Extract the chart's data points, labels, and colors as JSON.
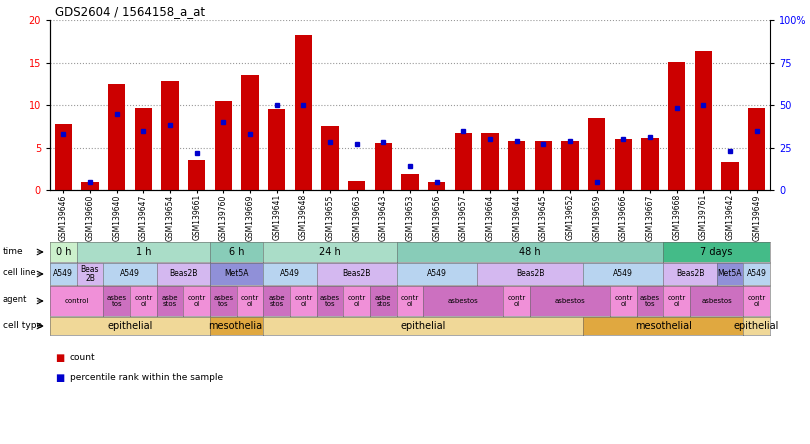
{
  "title": "GDS2604 / 1564158_a_at",
  "samples": [
    "GSM139646",
    "GSM139660",
    "GSM139640",
    "GSM139647",
    "GSM139654",
    "GSM139661",
    "GSM139760",
    "GSM139669",
    "GSM139641",
    "GSM139648",
    "GSM139655",
    "GSM139663",
    "GSM139643",
    "GSM139653",
    "GSM139656",
    "GSM139657",
    "GSM139664",
    "GSM139644",
    "GSM139645",
    "GSM139652",
    "GSM139659",
    "GSM139666",
    "GSM139667",
    "GSM139668",
    "GSM139761",
    "GSM139642",
    "GSM139649"
  ],
  "counts": [
    7.8,
    0.9,
    12.5,
    9.7,
    12.8,
    3.5,
    10.5,
    13.5,
    9.5,
    18.2,
    7.5,
    1.1,
    5.5,
    1.9,
    0.9,
    6.7,
    6.7,
    5.8,
    5.8,
    5.8,
    8.5,
    6.0,
    6.1,
    15.1,
    16.4,
    3.3,
    9.6
  ],
  "percentiles": [
    33,
    5,
    45,
    35,
    38,
    22,
    40,
    33,
    50,
    50,
    28,
    27,
    28,
    14,
    5,
    35,
    30,
    29,
    27,
    29,
    5,
    30,
    31,
    48,
    50,
    23,
    35
  ],
  "time_row": [
    {
      "label": "0 h",
      "start": 0,
      "end": 1,
      "color": "#ccf0cc"
    },
    {
      "label": "1 h",
      "start": 1,
      "end": 6,
      "color": "#aaddc8"
    },
    {
      "label": "6 h",
      "start": 6,
      "end": 8,
      "color": "#88ccb8"
    },
    {
      "label": "24 h",
      "start": 8,
      "end": 13,
      "color": "#aaddc8"
    },
    {
      "label": "48 h",
      "start": 13,
      "end": 23,
      "color": "#88ccb8"
    },
    {
      "label": "7 days",
      "start": 23,
      "end": 27,
      "color": "#44bb88"
    }
  ],
  "cell_line_row": [
    {
      "label": "A549",
      "start": 0,
      "end": 1,
      "color": "#b8d4f0"
    },
    {
      "label": "Beas\n2B",
      "start": 1,
      "end": 2,
      "color": "#d4b8f0"
    },
    {
      "label": "A549",
      "start": 2,
      "end": 4,
      "color": "#b8d4f0"
    },
    {
      "label": "Beas2B",
      "start": 4,
      "end": 6,
      "color": "#d4b8f0"
    },
    {
      "label": "Met5A",
      "start": 6,
      "end": 8,
      "color": "#9090d8"
    },
    {
      "label": "A549",
      "start": 8,
      "end": 10,
      "color": "#b8d4f0"
    },
    {
      "label": "Beas2B",
      "start": 10,
      "end": 13,
      "color": "#d4b8f0"
    },
    {
      "label": "A549",
      "start": 13,
      "end": 16,
      "color": "#b8d4f0"
    },
    {
      "label": "Beas2B",
      "start": 16,
      "end": 20,
      "color": "#d4b8f0"
    },
    {
      "label": "A549",
      "start": 20,
      "end": 23,
      "color": "#b8d4f0"
    },
    {
      "label": "Beas2B",
      "start": 23,
      "end": 25,
      "color": "#d4b8f0"
    },
    {
      "label": "Met5A",
      "start": 25,
      "end": 26,
      "color": "#9090d8"
    },
    {
      "label": "A549",
      "start": 26,
      "end": 27,
      "color": "#b8d4f0"
    }
  ],
  "agent_row": [
    {
      "label": "control",
      "start": 0,
      "end": 2,
      "color": "#f090d8"
    },
    {
      "label": "asbes\ntos",
      "start": 2,
      "end": 3,
      "color": "#cc70c0"
    },
    {
      "label": "contr\nol",
      "start": 3,
      "end": 4,
      "color": "#f090d8"
    },
    {
      "label": "asbe\nstos",
      "start": 4,
      "end": 5,
      "color": "#cc70c0"
    },
    {
      "label": "contr\nol",
      "start": 5,
      "end": 6,
      "color": "#f090d8"
    },
    {
      "label": "asbes\ntos",
      "start": 6,
      "end": 7,
      "color": "#cc70c0"
    },
    {
      "label": "contr\nol",
      "start": 7,
      "end": 8,
      "color": "#f090d8"
    },
    {
      "label": "asbe\nstos",
      "start": 8,
      "end": 9,
      "color": "#cc70c0"
    },
    {
      "label": "contr\nol",
      "start": 9,
      "end": 10,
      "color": "#f090d8"
    },
    {
      "label": "asbes\ntos",
      "start": 10,
      "end": 11,
      "color": "#cc70c0"
    },
    {
      "label": "contr\nol",
      "start": 11,
      "end": 12,
      "color": "#f090d8"
    },
    {
      "label": "asbe\nstos",
      "start": 12,
      "end": 13,
      "color": "#cc70c0"
    },
    {
      "label": "contr\nol",
      "start": 13,
      "end": 14,
      "color": "#f090d8"
    },
    {
      "label": "asbestos",
      "start": 14,
      "end": 17,
      "color": "#cc70c0"
    },
    {
      "label": "contr\nol",
      "start": 17,
      "end": 18,
      "color": "#f090d8"
    },
    {
      "label": "asbestos",
      "start": 18,
      "end": 21,
      "color": "#cc70c0"
    },
    {
      "label": "contr\nol",
      "start": 21,
      "end": 22,
      "color": "#f090d8"
    },
    {
      "label": "asbes\ntos",
      "start": 22,
      "end": 23,
      "color": "#cc70c0"
    },
    {
      "label": "contr\nol",
      "start": 23,
      "end": 24,
      "color": "#f090d8"
    },
    {
      "label": "asbestos",
      "start": 24,
      "end": 26,
      "color": "#cc70c0"
    },
    {
      "label": "contr\nol",
      "start": 26,
      "end": 27,
      "color": "#f090d8"
    }
  ],
  "cell_type_row": [
    {
      "label": "epithelial",
      "start": 0,
      "end": 6,
      "color": "#f0d898"
    },
    {
      "label": "mesothelial",
      "start": 6,
      "end": 8,
      "color": "#e0a840"
    },
    {
      "label": "epithelial",
      "start": 8,
      "end": 20,
      "color": "#f0d898"
    },
    {
      "label": "mesothelial",
      "start": 20,
      "end": 26,
      "color": "#e0a840"
    },
    {
      "label": "epithelial",
      "start": 26,
      "end": 27,
      "color": "#f0d898"
    }
  ],
  "ylim_left": [
    0,
    20
  ],
  "bar_color": "#cc0000",
  "marker_color": "#0000cc"
}
